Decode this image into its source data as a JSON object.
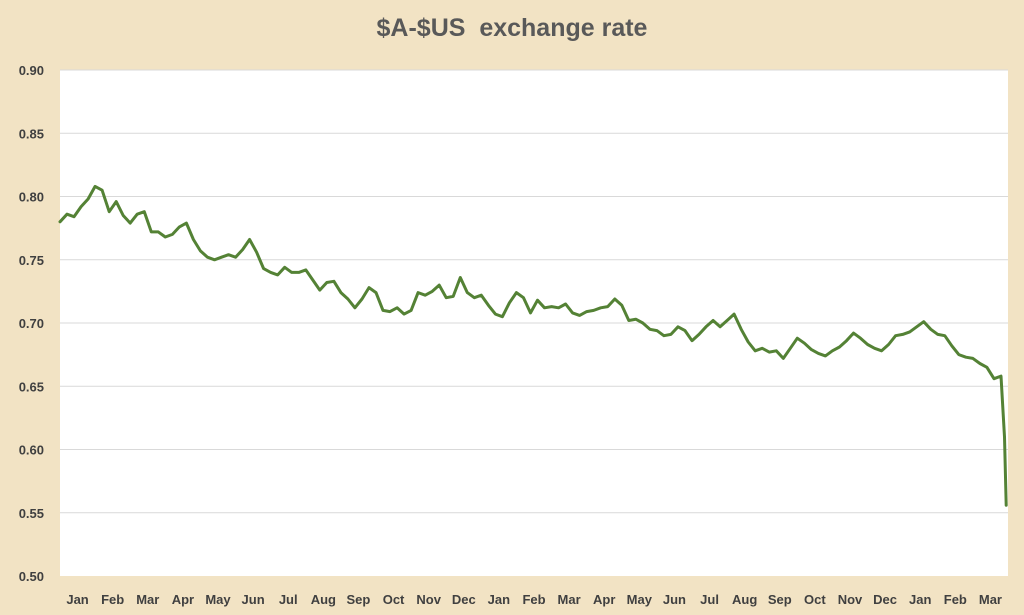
{
  "chart_data": {
    "type": "line",
    "title": "$A-$US  exchange rate",
    "xlabel": "",
    "ylabel": "",
    "ylim": [
      0.5,
      0.9
    ],
    "yticks": [
      "0.50",
      "0.55",
      "0.60",
      "0.65",
      "0.70",
      "0.75",
      "0.80",
      "0.85",
      "0.90"
    ],
    "xticks": [
      "Jan",
      "Feb",
      "Mar",
      "Apr",
      "May",
      "Jun",
      "Jul",
      "Aug",
      "Sep",
      "Oct",
      "Nov",
      "Dec",
      "Jan",
      "Feb",
      "Mar",
      "Apr",
      "May",
      "Jun",
      "Jul",
      "Aug",
      "Sep",
      "Oct",
      "Nov",
      "Dec",
      "Jan",
      "Feb",
      "Mar"
    ],
    "grid": true,
    "legend": "none",
    "colors": {
      "line": "#548235",
      "background": "#f2e3c4",
      "plot": "#ffffff",
      "grid": "#d9d9d9"
    },
    "series": [
      {
        "x": [
          0,
          0.2,
          0.4,
          0.6,
          0.8,
          1.0,
          1.2,
          1.4,
          1.6,
          1.8,
          2.0,
          2.2,
          2.4,
          2.6,
          2.8,
          3.0,
          3.2,
          3.4,
          3.6,
          3.8,
          4.0,
          4.2,
          4.4,
          4.6,
          4.8,
          5.0,
          5.2,
          5.4,
          5.6,
          5.8,
          6.0,
          6.2,
          6.4,
          6.6,
          6.8,
          7.0,
          7.2,
          7.4,
          7.6,
          7.8,
          8.0,
          8.2,
          8.4,
          8.6,
          8.8,
          9.0,
          9.2,
          9.4,
          9.6,
          9.8,
          10.0,
          10.2,
          10.4,
          10.6,
          10.8,
          11.0,
          11.2,
          11.4,
          11.6,
          11.8,
          12.0,
          12.2,
          12.4,
          12.6,
          12.8,
          13.0,
          13.2,
          13.4,
          13.6,
          13.8,
          14.0,
          14.2,
          14.4,
          14.6,
          14.8,
          15.0,
          15.2,
          15.4,
          15.6,
          15.8,
          16.0,
          16.2,
          16.4,
          16.6,
          16.8,
          17.0,
          17.2,
          17.4,
          17.6,
          17.8,
          18.0,
          18.2,
          18.4,
          18.6,
          18.8,
          19.0,
          19.2,
          19.4,
          19.6,
          19.8,
          20.0,
          20.2,
          20.4,
          20.6,
          20.8,
          21.0,
          21.2,
          21.4,
          21.6,
          21.8,
          22.0,
          22.2,
          22.4,
          22.6,
          22.8,
          23.0,
          23.2,
          23.4,
          23.6,
          23.8,
          24.0,
          24.2,
          24.4,
          24.6,
          24.8,
          25.0,
          25.2,
          25.4,
          25.6,
          25.8,
          26.0,
          26.2,
          26.4,
          26.6,
          26.8,
          26.9,
          26.95
        ],
        "values": [
          0.78,
          0.786,
          0.784,
          0.792,
          0.798,
          0.808,
          0.805,
          0.788,
          0.796,
          0.785,
          0.779,
          0.786,
          0.788,
          0.772,
          0.772,
          0.768,
          0.77,
          0.776,
          0.779,
          0.766,
          0.757,
          0.752,
          0.75,
          0.752,
          0.754,
          0.752,
          0.758,
          0.766,
          0.756,
          0.743,
          0.74,
          0.738,
          0.744,
          0.74,
          0.74,
          0.742,
          0.734,
          0.726,
          0.732,
          0.733,
          0.724,
          0.719,
          0.712,
          0.719,
          0.728,
          0.724,
          0.71,
          0.709,
          0.712,
          0.707,
          0.71,
          0.724,
          0.722,
          0.725,
          0.73,
          0.72,
          0.721,
          0.736,
          0.724,
          0.72,
          0.722,
          0.714,
          0.707,
          0.705,
          0.716,
          0.724,
          0.72,
          0.708,
          0.718,
          0.712,
          0.713,
          0.712,
          0.715,
          0.708,
          0.706,
          0.709,
          0.71,
          0.712,
          0.713,
          0.719,
          0.714,
          0.702,
          0.703,
          0.7,
          0.695,
          0.694,
          0.69,
          0.691,
          0.697,
          0.694,
          0.686,
          0.691,
          0.697,
          0.702,
          0.697,
          0.702,
          0.707,
          0.695,
          0.685,
          0.678,
          0.68,
          0.677,
          0.678,
          0.672,
          0.68,
          0.688,
          0.684,
          0.679,
          0.676,
          0.674,
          0.678,
          0.681,
          0.686,
          0.692,
          0.688,
          0.683,
          0.68,
          0.678,
          0.683,
          0.69,
          0.691,
          0.693,
          0.697,
          0.701,
          0.695,
          0.691,
          0.69,
          0.682,
          0.675,
          0.673,
          0.672,
          0.668,
          0.665,
          0.656,
          0.658,
          0.61,
          0.556
        ]
      }
    ]
  }
}
